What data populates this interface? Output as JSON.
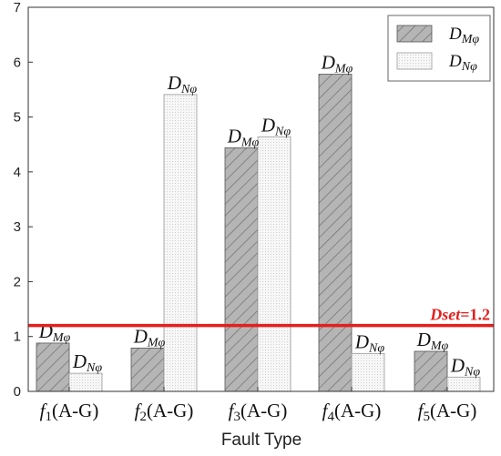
{
  "chart_data": {
    "type": "bar",
    "title": "",
    "xlabel": "Fault Type",
    "ylabel": "",
    "ylim": [
      0,
      7
    ],
    "yticks": [
      "0",
      "1",
      "2",
      "3",
      "4",
      "5",
      "6",
      "7"
    ],
    "categories": [
      {
        "main": "f",
        "sub": "1",
        "rest": "(A-G)"
      },
      {
        "main": "f",
        "sub": "2",
        "rest": "(A-G)"
      },
      {
        "main": "f",
        "sub": "3",
        "rest": "(A-G)"
      },
      {
        "main": "f",
        "sub": "4",
        "rest": "(A-G)"
      },
      {
        "main": "f",
        "sub": "5",
        "rest": "(A-G)"
      }
    ],
    "series": [
      {
        "label_main": "D",
        "label_sub": "Mφ",
        "values": [
          0.88,
          0.79,
          4.44,
          5.78,
          0.73
        ],
        "color": "#b0b0b0",
        "pattern": "diagonal-hatch"
      },
      {
        "label_main": "D",
        "label_sub": "Nφ",
        "values": [
          0.33,
          5.41,
          4.64,
          0.69,
          0.26
        ],
        "color": "#f4f4f4",
        "pattern": "dots"
      }
    ],
    "threshold": {
      "name": "Dset",
      "text": "=1.2",
      "value": 1.2,
      "color": "#e41e1e"
    },
    "legend": {
      "position": "top-right"
    },
    "grid": false
  }
}
